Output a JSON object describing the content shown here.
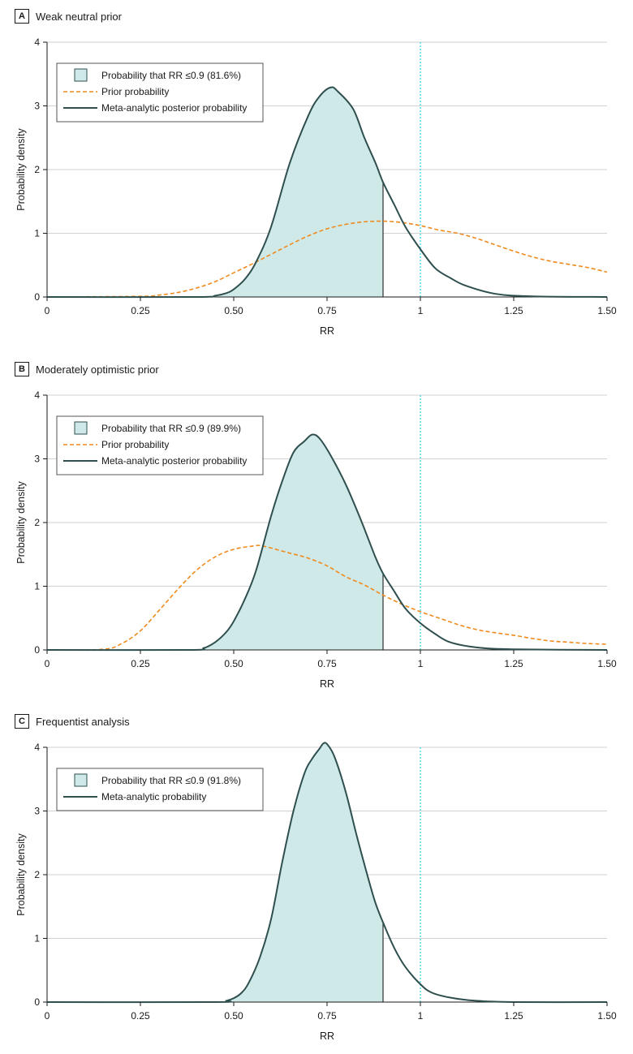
{
  "chart_data": [
    {
      "type": "area",
      "panel_letter": "A",
      "title": "Weak neutral prior",
      "xlabel": "RR",
      "ylabel": "Probability density",
      "xlim": [
        0,
        1.5
      ],
      "ylim": [
        0,
        4
      ],
      "xticks": [
        0,
        0.25,
        0.5,
        0.75,
        1,
        1.25,
        1.5
      ],
      "xtick_labels": [
        "0",
        "0.25",
        "0.50",
        "0.75",
        "1",
        "1.25",
        "1.50"
      ],
      "yticks": [
        0,
        1,
        2,
        3,
        4
      ],
      "ytick_labels": [
        "0",
        "1",
        "2",
        "3",
        "4"
      ],
      "grid": true,
      "reference_line_x": 1,
      "shade_upto_x": 0.9,
      "legend_position": "top-left",
      "legend": [
        "Probability that RR ≤0.9 (81.6%)",
        "Prior probability",
        "Meta-analytic posterior probability"
      ],
      "series": [
        {
          "name": "Meta-analytic posterior probability",
          "style": "solid",
          "color": "#2f4f4f",
          "x": [
            0,
            0.4,
            0.45,
            0.48,
            0.5,
            0.53,
            0.56,
            0.6,
            0.65,
            0.7,
            0.73,
            0.76,
            0.78,
            0.82,
            0.85,
            0.88,
            0.9,
            0.93,
            0.96,
            1.0,
            1.04,
            1.08,
            1.12,
            1.2,
            1.3,
            1.5
          ],
          "y": [
            0,
            0,
            0.02,
            0.06,
            0.12,
            0.28,
            0.55,
            1.1,
            2.1,
            2.85,
            3.15,
            3.29,
            3.22,
            2.95,
            2.5,
            2.1,
            1.8,
            1.45,
            1.1,
            0.75,
            0.45,
            0.3,
            0.18,
            0.05,
            0.01,
            0
          ]
        },
        {
          "name": "Prior probability",
          "style": "dashed",
          "color": "#f08a1c",
          "x": [
            0,
            0.25,
            0.3,
            0.35,
            0.4,
            0.45,
            0.5,
            0.55,
            0.6,
            0.65,
            0.7,
            0.75,
            0.8,
            0.85,
            0.9,
            0.95,
            1.0,
            1.05,
            1.1,
            1.15,
            1.2,
            1.25,
            1.3,
            1.35,
            1.4,
            1.45,
            1.5
          ],
          "y": [
            0,
            0.01,
            0.03,
            0.07,
            0.14,
            0.24,
            0.38,
            0.52,
            0.67,
            0.82,
            0.96,
            1.07,
            1.14,
            1.18,
            1.19,
            1.17,
            1.12,
            1.05,
            1.0,
            0.92,
            0.82,
            0.72,
            0.63,
            0.56,
            0.51,
            0.46,
            0.39
          ]
        }
      ]
    },
    {
      "type": "area",
      "panel_letter": "B",
      "title": "Moderately optimistic prior",
      "xlabel": "RR",
      "ylabel": "Probability density",
      "xlim": [
        0,
        1.5
      ],
      "ylim": [
        0,
        4
      ],
      "xticks": [
        0,
        0.25,
        0.5,
        0.75,
        1,
        1.25,
        1.5
      ],
      "xtick_labels": [
        "0",
        "0.25",
        "0.50",
        "0.75",
        "1",
        "1.25",
        "1.50"
      ],
      "yticks": [
        0,
        1,
        2,
        3,
        4
      ],
      "ytick_labels": [
        "0",
        "1",
        "2",
        "3",
        "4"
      ],
      "grid": true,
      "reference_line_x": 1,
      "shade_upto_x": 0.9,
      "legend_position": "top-left",
      "legend": [
        "Probability that RR ≤0.9 (89.9%)",
        "Prior probability",
        "Meta-analytic posterior probability"
      ],
      "series": [
        {
          "name": "Meta-analytic posterior probability",
          "style": "solid",
          "color": "#2f4f4f",
          "x": [
            0,
            0.38,
            0.42,
            0.45,
            0.48,
            0.5,
            0.53,
            0.56,
            0.6,
            0.63,
            0.66,
            0.69,
            0.71,
            0.73,
            0.76,
            0.8,
            0.84,
            0.88,
            0.9,
            0.93,
            0.96,
            1.0,
            1.04,
            1.08,
            1.15,
            1.25,
            1.5
          ],
          "y": [
            0,
            0,
            0.03,
            0.12,
            0.28,
            0.45,
            0.8,
            1.25,
            2.1,
            2.65,
            3.1,
            3.28,
            3.38,
            3.32,
            3.05,
            2.6,
            2.05,
            1.45,
            1.2,
            0.92,
            0.65,
            0.42,
            0.25,
            0.12,
            0.04,
            0.01,
            0
          ]
        },
        {
          "name": "Prior probability",
          "style": "dashed",
          "color": "#f08a1c",
          "x": [
            0,
            0.15,
            0.2,
            0.25,
            0.3,
            0.35,
            0.4,
            0.45,
            0.5,
            0.55,
            0.57,
            0.6,
            0.65,
            0.7,
            0.75,
            0.8,
            0.85,
            0.9,
            0.95,
            1.0,
            1.05,
            1.1,
            1.15,
            1.2,
            1.25,
            1.3,
            1.35,
            1.4,
            1.45,
            1.5
          ],
          "y": [
            0,
            0.01,
            0.1,
            0.3,
            0.62,
            0.95,
            1.25,
            1.46,
            1.58,
            1.63,
            1.64,
            1.6,
            1.52,
            1.44,
            1.32,
            1.15,
            1.02,
            0.86,
            0.72,
            0.6,
            0.5,
            0.4,
            0.32,
            0.27,
            0.23,
            0.18,
            0.14,
            0.12,
            0.1,
            0.09
          ]
        }
      ]
    },
    {
      "type": "area",
      "panel_letter": "C",
      "title": "Frequentist analysis",
      "xlabel": "RR",
      "ylabel": "Probability density",
      "xlim": [
        0,
        1.5
      ],
      "ylim": [
        0,
        4
      ],
      "xticks": [
        0,
        0.25,
        0.5,
        0.75,
        1,
        1.25,
        1.5
      ],
      "xtick_labels": [
        "0",
        "0.25",
        "0.50",
        "0.75",
        "1",
        "1.25",
        "1.50"
      ],
      "yticks": [
        0,
        1,
        2,
        3,
        4
      ],
      "ytick_labels": [
        "0",
        "1",
        "2",
        "3",
        "4"
      ],
      "grid": true,
      "reference_line_x": 1,
      "shade_upto_x": 0.9,
      "legend_position": "top-left",
      "legend": [
        "Probability that RR ≤0.9 (91.8%)",
        "Meta-analytic probability"
      ],
      "series": [
        {
          "name": "Meta-analytic probability",
          "style": "solid",
          "color": "#2f4f4f",
          "x": [
            0,
            0.45,
            0.48,
            0.5,
            0.52,
            0.54,
            0.57,
            0.6,
            0.63,
            0.66,
            0.69,
            0.71,
            0.73,
            0.74,
            0.75,
            0.77,
            0.8,
            0.83,
            0.86,
            0.88,
            0.9,
            0.93,
            0.96,
            1.0,
            1.03,
            1.08,
            1.15,
            1.25,
            1.5
          ],
          "y": [
            0,
            0,
            0.02,
            0.06,
            0.14,
            0.3,
            0.7,
            1.3,
            2.2,
            3.0,
            3.6,
            3.82,
            3.98,
            4.06,
            4.05,
            3.85,
            3.3,
            2.6,
            1.95,
            1.55,
            1.25,
            0.85,
            0.55,
            0.28,
            0.15,
            0.07,
            0.02,
            0,
            0
          ]
        }
      ]
    }
  ]
}
